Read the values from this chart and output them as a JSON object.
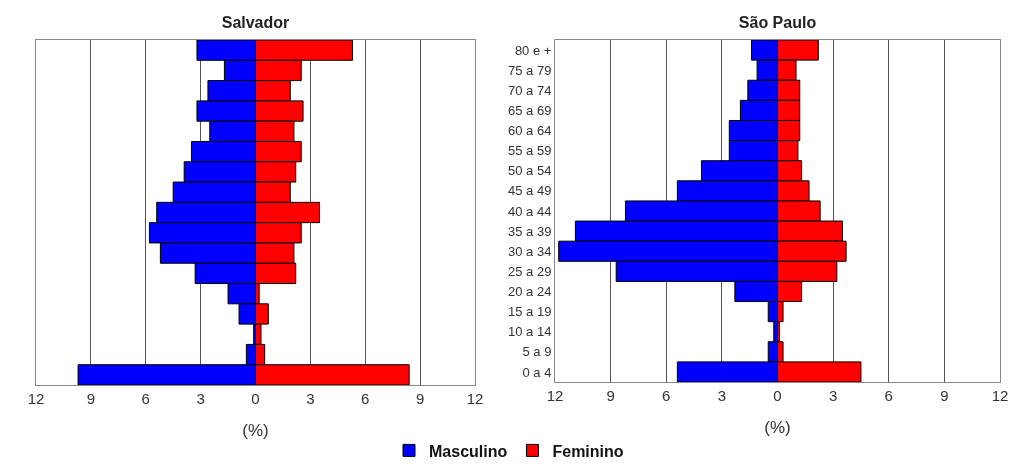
{
  "chart_data": [
    {
      "type": "bar",
      "orientation": "horizontal",
      "title": "Salvador",
      "xlabel": "(%)",
      "categories": [
        null,
        null,
        null,
        null,
        null,
        null,
        null,
        null,
        null,
        null,
        null,
        null,
        null,
        null,
        null,
        null,
        null
      ],
      "series": [
        {
          "color": "#0000ff",
          "values": [
            -3.2,
            -1.7,
            -2.6,
            -3.2,
            -2.5,
            -3.5,
            -3.9,
            -4.5,
            -5.4,
            -5.8,
            -5.2,
            -3.3,
            -1.5,
            -0.9,
            -0.1,
            -0.5,
            -9.7
          ]
        },
        {
          "color": "#ff0000",
          "values": [
            5.3,
            2.5,
            1.9,
            2.6,
            2.1,
            2.5,
            2.2,
            1.9,
            3.5,
            2.5,
            2.1,
            2.2,
            0.2,
            0.7,
            0.3,
            0.5,
            8.4
          ]
        }
      ],
      "xlim": [
        -12,
        12
      ],
      "xticks": [
        {
          "value": -12,
          "label": "12"
        },
        {
          "value": -9,
          "label": "9"
        },
        {
          "value": -6,
          "label": "6"
        },
        {
          "value": -3,
          "label": "3"
        },
        0,
        3,
        6,
        9,
        12
      ],
      "grid": "x",
      "tick_labels": "x",
      "legend": false,
      "stacked": true
    },
    {
      "type": "bar",
      "orientation": "horizontal",
      "title": "São Paulo",
      "xlabel": "(%)",
      "categories": [
        "80 e +",
        "75 a 79",
        "70 a 74",
        "65 a 69",
        "60 a 64",
        "55 a 59",
        "50 a 54",
        "45 a 49",
        "40 a 44",
        "35 a 39",
        "30 a 34",
        "25 a 29",
        "20 a 24",
        "15 a 19",
        "10 a 14",
        "5 a 9",
        "0 a 4"
      ],
      "series": [
        {
          "name": "Masculino",
          "color": "#0000ff",
          "values": [
            -1.4,
            -1.1,
            -1.6,
            -2.0,
            -2.6,
            -2.6,
            -4.1,
            -5.4,
            -8.2,
            -10.9,
            -11.8,
            -8.7,
            -2.3,
            -0.5,
            -0.2,
            -0.5,
            -5.4
          ]
        },
        {
          "name": "Feminino",
          "color": "#ff0000",
          "values": [
            2.2,
            1.0,
            1.2,
            1.2,
            1.2,
            1.1,
            1.3,
            1.7,
            2.3,
            3.5,
            3.7,
            3.2,
            1.3,
            0.3,
            0.1,
            0.3,
            4.5
          ]
        }
      ],
      "xlim": [
        -12,
        12
      ],
      "xticks": [
        {
          "value": -12,
          "label": "12"
        },
        {
          "value": -9,
          "label": "9"
        },
        {
          "value": -6,
          "label": "6"
        },
        {
          "value": -3,
          "label": "3"
        },
        0,
        3,
        6,
        9,
        12
      ],
      "grid": "x",
      "legend": "bottom",
      "stacked": true
    }
  ]
}
